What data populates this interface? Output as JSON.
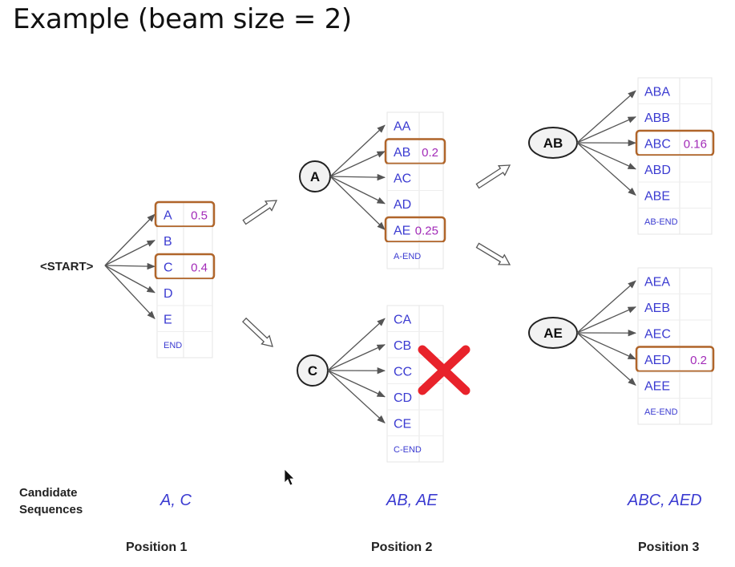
{
  "title": "Example (beam size = 2)",
  "colors": {
    "token_text": "#3b3bd1",
    "probability_text": "#a22bb8",
    "highlight_border": "#b0652a",
    "cross": "#e8232b",
    "arrow": "#555555"
  },
  "start_label": "<START>",
  "position1": {
    "candidates": [
      {
        "token": "A",
        "prob": "0.5",
        "selected": true
      },
      {
        "token": "B",
        "prob": "",
        "selected": false
      },
      {
        "token": "C",
        "prob": "0.4",
        "selected": true
      },
      {
        "token": "D",
        "prob": "",
        "selected": false
      },
      {
        "token": "E",
        "prob": "",
        "selected": false
      },
      {
        "token": "END",
        "prob": "",
        "selected": false
      }
    ]
  },
  "position2": {
    "nodes": [
      {
        "label": "A",
        "pruned": false,
        "candidates": [
          {
            "token": "AA",
            "prob": "",
            "selected": false
          },
          {
            "token": "AB",
            "prob": "0.2",
            "selected": true
          },
          {
            "token": "AC",
            "prob": "",
            "selected": false
          },
          {
            "token": "AD",
            "prob": "",
            "selected": false
          },
          {
            "token": "AE",
            "prob": "0.25",
            "selected": true
          },
          {
            "token": "A-END",
            "prob": "",
            "selected": false
          }
        ]
      },
      {
        "label": "C",
        "pruned": true,
        "candidates": [
          {
            "token": "CA",
            "prob": "",
            "selected": false
          },
          {
            "token": "CB",
            "prob": "",
            "selected": false
          },
          {
            "token": "CC",
            "prob": "",
            "selected": false
          },
          {
            "token": "CD",
            "prob": "",
            "selected": false
          },
          {
            "token": "CE",
            "prob": "",
            "selected": false
          },
          {
            "token": "C-END",
            "prob": "",
            "selected": false
          }
        ]
      }
    ]
  },
  "position3": {
    "nodes": [
      {
        "label": "AB",
        "candidates": [
          {
            "token": "ABA",
            "prob": "",
            "selected": false
          },
          {
            "token": "ABB",
            "prob": "",
            "selected": false
          },
          {
            "token": "ABC",
            "prob": "0.16",
            "selected": true
          },
          {
            "token": "ABD",
            "prob": "",
            "selected": false
          },
          {
            "token": "ABE",
            "prob": "",
            "selected": false
          },
          {
            "token": "AB-END",
            "prob": "",
            "selected": false
          }
        ]
      },
      {
        "label": "AE",
        "candidates": [
          {
            "token": "AEA",
            "prob": "",
            "selected": false
          },
          {
            "token": "AEB",
            "prob": "",
            "selected": false
          },
          {
            "token": "AEC",
            "prob": "",
            "selected": false
          },
          {
            "token": "AED",
            "prob": "0.2",
            "selected": true
          },
          {
            "token": "AEE",
            "prob": "",
            "selected": false
          },
          {
            "token": "AE-END",
            "prob": "",
            "selected": false
          }
        ]
      }
    ]
  },
  "footer": {
    "candidate_label_line1": "Candidate",
    "candidate_label_line2": "Sequences",
    "sequences": [
      "A, C",
      "AB, AE",
      "ABC, AED"
    ],
    "positions": [
      "Position 1",
      "Position 2",
      "Position 3"
    ]
  }
}
